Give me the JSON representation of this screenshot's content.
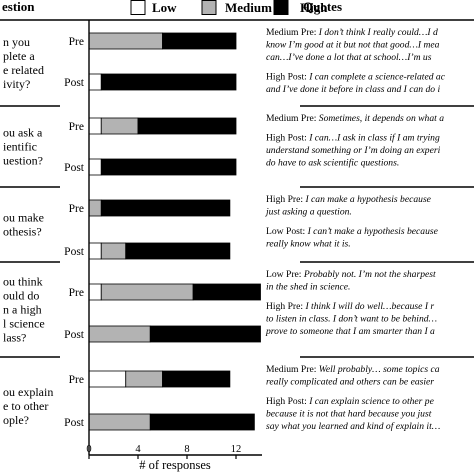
{
  "header": {
    "question": "estion",
    "quotes": "Quotes"
  },
  "chart_data": {
    "type": "bar",
    "stacked": true,
    "orientation": "horizontal",
    "xlabel": "# of responses",
    "xlim": [
      0,
      14
    ],
    "xticks": [
      0,
      4,
      8,
      12
    ],
    "legend_position": "top",
    "series": [
      {
        "name": "Low",
        "color": "#ffffff"
      },
      {
        "name": "Medium",
        "color": "#b3b3b3"
      },
      {
        "name": "High",
        "color": "#000000"
      }
    ],
    "groups": [
      {
        "question": [
          "n you",
          "plete a",
          "e related",
          "ivity?"
        ],
        "rows": [
          {
            "label": "Pre",
            "values": [
              0,
              6,
              6
            ]
          },
          {
            "label": "Post",
            "values": [
              1,
              0,
              11
            ]
          }
        ],
        "quotes": [
          {
            "label": "Medium Pre: ",
            "lines": [
              "I don’t think I really could…I d",
              "know I’m good at it but not that good…I mea",
              "can…I’ve done a lot that at school…I’m us"
            ]
          },
          {
            "label": "High Post: ",
            "lines": [
              "I can complete a science-related ac",
              "and I’ve done it before in class and I can do i"
            ]
          }
        ]
      },
      {
        "question": [
          "ou ask a",
          "ientific",
          "uestion?"
        ],
        "rows": [
          {
            "label": "Pre",
            "values": [
              1,
              3,
              8
            ]
          },
          {
            "label": "Post",
            "values": [
              1,
              0,
              11
            ]
          }
        ],
        "quotes": [
          {
            "label": "Medium Pre: ",
            "lines": [
              "Sometimes, it depends on what a"
            ]
          },
          {
            "label": "High Post: ",
            "lines": [
              "I can…I ask in class if I am trying",
              "understand something or I’m doing an experi",
              "do have to ask scientific questions."
            ]
          }
        ]
      },
      {
        "question": [
          "ou make",
          "othesis?"
        ],
        "rows": [
          {
            "label": "Pre",
            "values": [
              0,
              1,
              10.5
            ]
          },
          {
            "label": "Post",
            "values": [
              1,
              2,
              8.5
            ]
          }
        ],
        "quotes": [
          {
            "label": "High Pre: ",
            "lines": [
              "I can make a hypothesis because",
              "just asking a question."
            ]
          },
          {
            "label": "Low Post: ",
            "lines": [
              "I can’t make a hypothesis because",
              "really know what it is."
            ]
          }
        ]
      },
      {
        "question": [
          "ou think",
          "ould do",
          "n a high",
          "l science",
          "lass?"
        ],
        "rows": [
          {
            "label": "Pre",
            "values": [
              1,
              7.5,
              5.5
            ]
          },
          {
            "label": "Post",
            "values": [
              0,
              5,
              9
            ]
          }
        ],
        "quotes": [
          {
            "label": "Low Pre: ",
            "lines": [
              "Probably not. I’m not the sharpest",
              "in the shed in science."
            ]
          },
          {
            "label": "High Pre: ",
            "lines": [
              "I think I will do well…because I r",
              "to listen in class. I don’t want to be behind…",
              "prove to someone that I am smarter than I a"
            ]
          }
        ]
      },
      {
        "question": [
          "ou explain",
          "e to other",
          "ople?"
        ],
        "rows": [
          {
            "label": "Pre",
            "values": [
              3,
              3,
              5.5
            ]
          },
          {
            "label": "Post",
            "values": [
              0,
              5,
              8.5
            ]
          }
        ],
        "quotes": [
          {
            "label": "Medium Pre: ",
            "lines": [
              "Well probably… some topics ca",
              "really complicated and others can be easier"
            ]
          },
          {
            "label": "High Post: ",
            "lines": [
              "I can explain science to other pe",
              "because it is not that hard because you just",
              "say what you learned and kind of explain it…"
            ]
          }
        ]
      }
    ]
  }
}
